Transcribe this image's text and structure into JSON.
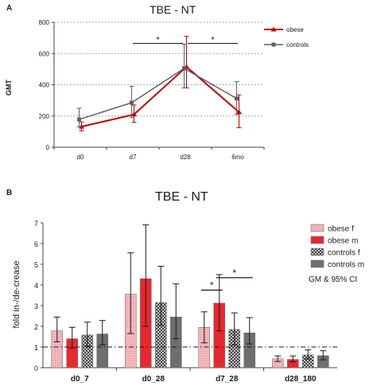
{
  "colors": {
    "obese": "#c00000",
    "controls": "#606060",
    "obese_f": "#f4b8bd",
    "obese_m": "#e8282e",
    "controls_f": "#a0a0a0",
    "controls_m": "#6e6e6e",
    "axis": "#404040",
    "grid": "#909090"
  },
  "chart_data": [
    {
      "panel_label": "A",
      "type": "line",
      "title": "TBE - NT",
      "xlabel": "",
      "ylabel": "GMT",
      "categories": [
        "d0",
        "d7",
        "d28",
        "6mo"
      ],
      "ylim": [
        0,
        800
      ],
      "yticks": [
        0,
        200,
        400,
        600,
        800
      ],
      "grid": "horizontal dashed",
      "legend_position": "top-right",
      "series": [
        {
          "name": "obese",
          "marker": "triangle",
          "color_key": "obese",
          "values": [
            132,
            210,
            515,
            225
          ],
          "err_low": [
            105,
            160,
            380,
            125
          ],
          "err_high": [
            162,
            270,
            710,
            335
          ]
        },
        {
          "name": "controls",
          "marker": "square",
          "color_key": "controls",
          "values": [
            178,
            285,
            505,
            312
          ],
          "err_low": [
            130,
            190,
            380,
            210
          ],
          "err_high": [
            250,
            390,
            660,
            420
          ]
        }
      ],
      "significance": [
        {
          "from": "d7",
          "to": "d28",
          "label": "*",
          "y": 665
        },
        {
          "from": "d28",
          "to": "6mo",
          "label": "*",
          "y": 665
        }
      ]
    },
    {
      "panel_label": "B",
      "type": "bar",
      "title": "TBE - NT",
      "xlabel": "",
      "ylabel": "fold in-/de-crease",
      "categories": [
        "d0_7",
        "d0_28",
        "d7_28",
        "d28_180"
      ],
      "ylim": [
        0,
        7
      ],
      "yticks": [
        0,
        1,
        2,
        3,
        4,
        5,
        6,
        7
      ],
      "reference_line": 1,
      "legend_position": "top-right",
      "legend_note": "GM & 95% CI",
      "series": [
        {
          "name": "obese f",
          "color_key": "obese_f",
          "pattern": "dots",
          "values": [
            1.78,
            3.55,
            1.95,
            0.43
          ],
          "err_low": [
            1.25,
            1.65,
            1.2,
            0.3
          ],
          "err_high": [
            2.45,
            5.55,
            2.7,
            0.57
          ]
        },
        {
          "name": "obese m",
          "color_key": "obese_m",
          "pattern": "none",
          "values": [
            1.4,
            4.3,
            3.12,
            0.4
          ],
          "err_low": [
            0.95,
            2.0,
            1.78,
            0.28
          ],
          "err_high": [
            1.95,
            6.9,
            4.5,
            0.57
          ]
        },
        {
          "name": "controls f",
          "color_key": "controls_f",
          "pattern": "checker",
          "values": [
            1.58,
            3.15,
            1.85,
            0.62
          ],
          "err_low": [
            1.05,
            2.05,
            1.1,
            0.42
          ],
          "err_high": [
            2.2,
            4.9,
            2.65,
            0.86
          ]
        },
        {
          "name": "controls m",
          "color_key": "controls_m",
          "pattern": "none",
          "values": [
            1.63,
            2.45,
            1.68,
            0.58
          ],
          "err_low": [
            1.1,
            1.4,
            1.15,
            0.38
          ],
          "err_high": [
            2.28,
            4.05,
            2.42,
            0.82
          ]
        }
      ],
      "significance": [
        {
          "category": "d7_28",
          "from_series": 0,
          "to_series": 1,
          "label": "*",
          "y": 3.75
        },
        {
          "category": "d7_28",
          "from_series": 1,
          "to_series": 3,
          "label": "*",
          "y": 4.35
        }
      ]
    }
  ]
}
